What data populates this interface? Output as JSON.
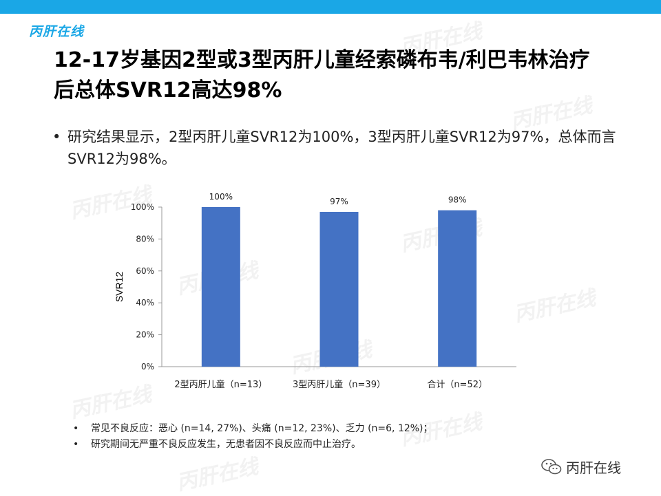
{
  "logo": "丙肝在线",
  "title": "12-17岁基因2型或3型丙肝儿童经索磷布韦/利巴韦林治疗后总体SVR12高达98%",
  "bullet": "研究结果显示，2型丙肝儿童SVR12为100%，3型丙肝儿童SVR12为97%，总体而言SVR12为98%。",
  "notes": [
    "常见不良反应：恶心 (n=14, 27%)、头痛 (n=12, 23%)、乏力 (n=6, 12%)；",
    "研究期间无严重不良反应发生，无患者因不良反应而中止治疗。"
  ],
  "watermark": "丙肝在线",
  "footer": {
    "brand": "丙肝在线",
    "icon": "wechat-icon"
  },
  "colors": {
    "accent": "#1aa7e6",
    "bar": "#4472c4"
  },
  "chart_data": {
    "type": "bar",
    "categories": [
      "2型丙肝儿童（n=13）",
      "3型丙肝儿童（n=39）",
      "合计（n=52）"
    ],
    "values": [
      100,
      97,
      98
    ],
    "data_labels": [
      "100%",
      "97%",
      "98%"
    ],
    "ylabel": "SVR12",
    "ylim": [
      0,
      100
    ],
    "yticks": [
      0,
      20,
      40,
      60,
      80,
      100
    ],
    "ytick_labels": [
      "0%",
      "20%",
      "40%",
      "60%",
      "80%",
      "100%"
    ],
    "grid": false,
    "legend": "none"
  }
}
